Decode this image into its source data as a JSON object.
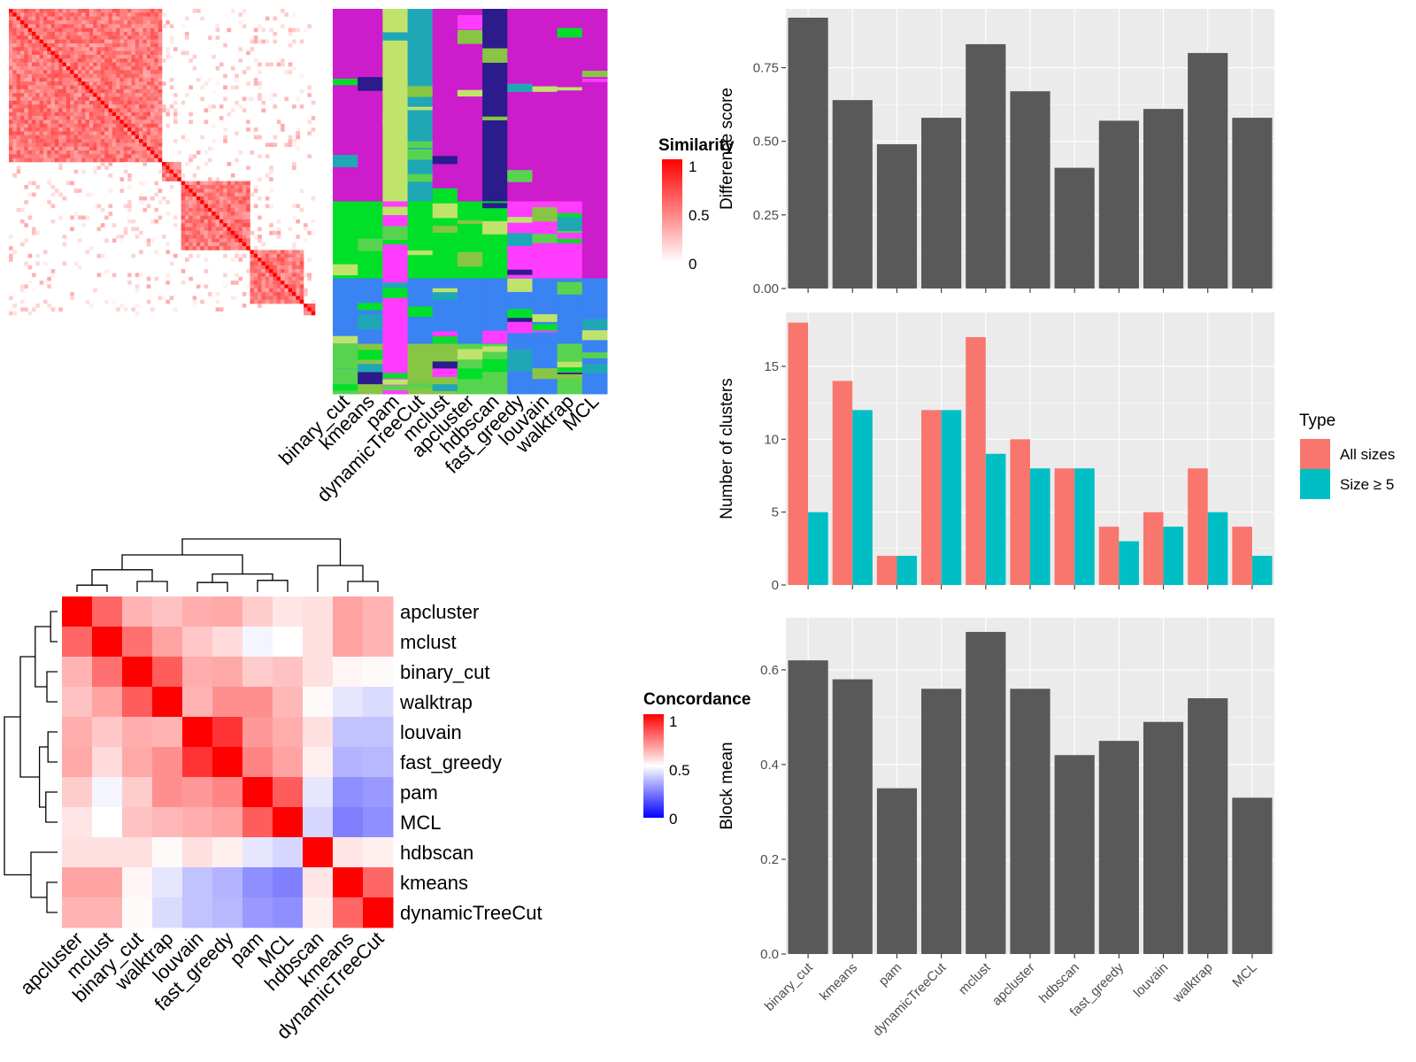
{
  "colors": {
    "red": "#ff0000",
    "white": "#ffffff",
    "blue": "#0000ff",
    "bar_dark": "#595959",
    "panel_bg": "#ebebeb",
    "all_sizes": "#f8766d",
    "size_ge5": "#00bfc4",
    "magenta": "#cc1ccc",
    "pink": "#ff3cff",
    "green": "#00e028",
    "cornflower": "#3a83f2",
    "navy": "#2c1b8c",
    "lightgreen": "#58d34f",
    "olive": "#88c545",
    "yellowgreen": "#c0e46b",
    "teal": "#20a7b6"
  },
  "methods_top": [
    "binary_cut",
    "kmeans",
    "pam",
    "dynamicTreeCut",
    "mclust",
    "apcluster",
    "hdbscan",
    "fast_greedy",
    "louvain",
    "walktrap",
    "MCL"
  ],
  "similarity_legend": {
    "title": "Similarity",
    "ticks": [
      "1",
      "0.5",
      "0"
    ]
  },
  "concordance": {
    "row_labels": [
      "apcluster",
      "mclust",
      "binary_cut",
      "walktrap",
      "louvain",
      "fast_greedy",
      "pam",
      "MCL",
      "hdbscan",
      "kmeans",
      "dynamicTreeCut"
    ],
    "col_labels": [
      "apcluster",
      "mclust",
      "binary_cut",
      "walktrap",
      "louvain",
      "fast_greedy",
      "pam",
      "MCL",
      "hdbscan",
      "kmeans",
      "dynamicTreeCut"
    ],
    "values": [
      [
        1.0,
        0.8,
        0.65,
        0.62,
        0.66,
        0.67,
        0.6,
        0.55,
        0.56,
        0.68,
        0.65
      ],
      [
        0.8,
        1.0,
        0.78,
        0.68,
        0.61,
        0.57,
        0.48,
        0.5,
        0.56,
        0.68,
        0.65
      ],
      [
        0.65,
        0.78,
        1.0,
        0.82,
        0.66,
        0.67,
        0.6,
        0.62,
        0.56,
        0.52,
        0.51
      ],
      [
        0.62,
        0.68,
        0.82,
        1.0,
        0.65,
        0.72,
        0.72,
        0.64,
        0.51,
        0.45,
        0.43
      ],
      [
        0.66,
        0.61,
        0.66,
        0.65,
        1.0,
        0.9,
        0.7,
        0.66,
        0.56,
        0.38,
        0.38
      ],
      [
        0.67,
        0.57,
        0.67,
        0.72,
        0.9,
        1.0,
        0.74,
        0.68,
        0.53,
        0.35,
        0.36
      ],
      [
        0.6,
        0.48,
        0.6,
        0.72,
        0.7,
        0.74,
        1.0,
        0.82,
        0.45,
        0.28,
        0.3
      ],
      [
        0.55,
        0.5,
        0.62,
        0.64,
        0.66,
        0.68,
        0.82,
        1.0,
        0.42,
        0.25,
        0.28
      ],
      [
        0.56,
        0.56,
        0.56,
        0.51,
        0.56,
        0.53,
        0.45,
        0.42,
        1.0,
        0.55,
        0.53
      ],
      [
        0.68,
        0.68,
        0.52,
        0.45,
        0.38,
        0.35,
        0.28,
        0.25,
        0.55,
        1.0,
        0.8
      ],
      [
        0.65,
        0.65,
        0.51,
        0.43,
        0.38,
        0.36,
        0.3,
        0.28,
        0.53,
        0.8,
        1.0
      ]
    ]
  },
  "concordance_legend": {
    "title": "Concordance",
    "ticks": [
      "1",
      "0.5",
      "0"
    ]
  },
  "chart_data": [
    {
      "type": "bar",
      "categories": [
        "binary_cut",
        "kmeans",
        "pam",
        "dynamicTreeCut",
        "mclust",
        "apcluster",
        "hdbscan",
        "fast_greedy",
        "louvain",
        "walktrap",
        "MCL"
      ],
      "values": [
        0.92,
        0.64,
        0.49,
        0.58,
        0.83,
        0.67,
        0.41,
        0.57,
        0.61,
        0.8,
        0.58
      ],
      "ylabel": "Difference score",
      "ylim": [
        0,
        0.95
      ],
      "yticks": [
        "0.00",
        "0.25",
        "0.50",
        "0.75"
      ],
      "grid": true
    },
    {
      "type": "bar",
      "categories": [
        "binary_cut",
        "kmeans",
        "pam",
        "dynamicTreeCut",
        "mclust",
        "apcluster",
        "hdbscan",
        "fast_greedy",
        "louvain",
        "walktrap",
        "MCL"
      ],
      "series": [
        {
          "name": "All sizes",
          "values": [
            18,
            14,
            2,
            12,
            17,
            10,
            8,
            4,
            5,
            8,
            4
          ]
        },
        {
          "name": "Size ≥ 5",
          "values": [
            5,
            12,
            2,
            12,
            9,
            8,
            8,
            3,
            4,
            5,
            2
          ]
        }
      ],
      "ylabel": "Number of clusters",
      "ylim": [
        0,
        18.7
      ],
      "yticks": [
        "0",
        "5",
        "10",
        "15"
      ],
      "legend_title": "Type",
      "legend": "right",
      "grid": true
    },
    {
      "type": "bar",
      "categories": [
        "binary_cut",
        "kmeans",
        "pam",
        "dynamicTreeCut",
        "mclust",
        "apcluster",
        "hdbscan",
        "fast_greedy",
        "louvain",
        "walktrap",
        "MCL"
      ],
      "values": [
        0.62,
        0.58,
        0.35,
        0.56,
        0.68,
        0.56,
        0.42,
        0.45,
        0.49,
        0.54,
        0.33
      ],
      "ylabel": "Block mean",
      "ylim": [
        0,
        0.71
      ],
      "yticks": [
        "0.0",
        "0.2",
        "0.4",
        "0.6"
      ],
      "grid": true
    }
  ]
}
